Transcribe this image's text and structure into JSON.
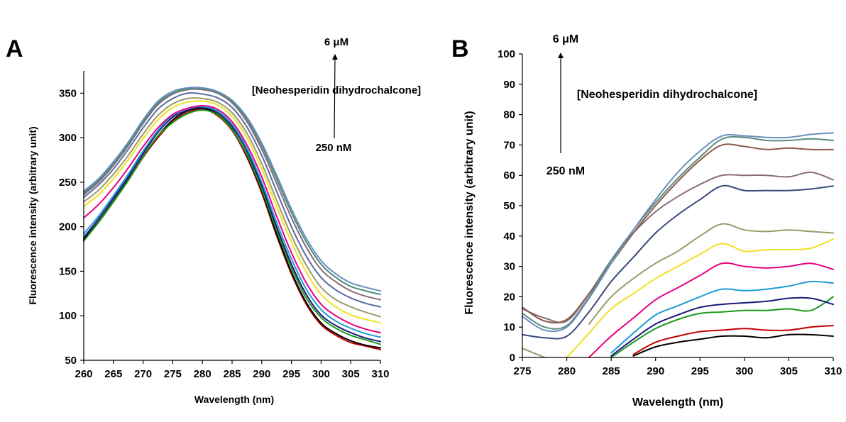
{
  "chart_data": [
    {
      "panel": "A",
      "type": "line",
      "xlabel": "Wavelength (nm)",
      "ylabel": "Fluorescence intensity (arbitrary unit)",
      "xlim": [
        260,
        310
      ],
      "ylim": [
        50,
        375
      ],
      "xticks": [
        260,
        265,
        270,
        275,
        280,
        285,
        290,
        295,
        300,
        305,
        310
      ],
      "yticks": [
        50,
        100,
        150,
        200,
        250,
        300,
        350
      ],
      "grid": false,
      "annotations": {
        "high": "6 μM",
        "low": "250 nM",
        "compound": "[Neohesperidin dihydrochalcone]"
      },
      "x": [
        260,
        262.5,
        265,
        267.5,
        270,
        272.5,
        275,
        277.5,
        280,
        282.5,
        285,
        287.5,
        290,
        292.5,
        295,
        297.5,
        300,
        302.5,
        305,
        307.5,
        310
      ],
      "series": [
        {
          "color": "#c00000",
          "values": [
            185,
            205,
            228,
            252,
            278,
            300,
            318,
            328,
            332,
            325,
            308,
            278,
            238,
            190,
            147,
            113,
            90,
            78,
            70,
            66,
            62
          ]
        },
        {
          "color": "#000000",
          "values": [
            186,
            206,
            229,
            253,
            279,
            302,
            320,
            330,
            333,
            327,
            310,
            280,
            240,
            192,
            149,
            115,
            92,
            80,
            72,
            67,
            64
          ]
        },
        {
          "color": "#1a9a1a",
          "values": [
            184,
            205,
            228,
            252,
            279,
            302,
            317,
            327,
            331,
            326,
            309,
            281,
            242,
            196,
            154,
            120,
            98,
            86,
            78,
            73,
            68
          ]
        },
        {
          "color": "#1a1a7a",
          "values": [
            188,
            209,
            232,
            256,
            282,
            306,
            323,
            331,
            334,
            329,
            313,
            285,
            246,
            200,
            158,
            124,
            101,
            89,
            81,
            75,
            71
          ]
        },
        {
          "color": "#1e9bd7",
          "values": [
            192,
            212,
            235,
            259,
            285,
            308,
            325,
            333,
            335,
            330,
            315,
            288,
            250,
            205,
            164,
            130,
            107,
            94,
            86,
            80,
            76
          ]
        },
        {
          "color": "#e6007e",
          "values": [
            210,
            225,
            244,
            266,
            290,
            311,
            326,
            333,
            336,
            332,
            318,
            292,
            256,
            212,
            171,
            137,
            113,
            100,
            91,
            85,
            81
          ]
        },
        {
          "color": "#f0e020",
          "values": [
            223,
            236,
            254,
            275,
            299,
            320,
            334,
            340,
            341,
            337,
            324,
            300,
            265,
            223,
            183,
            149,
            124,
            110,
            101,
            96,
            92
          ]
        },
        {
          "color": "#9a9a6a",
          "values": [
            228,
            241,
            259,
            280,
            304,
            325,
            338,
            344,
            344,
            340,
            328,
            305,
            271,
            230,
            190,
            157,
            132,
            118,
            110,
            104,
            99
          ]
        },
        {
          "color": "#5a6aa0",
          "values": [
            233,
            247,
            265,
            287,
            311,
            332,
            344,
            350,
            349,
            345,
            334,
            312,
            280,
            240,
            200,
            167,
            143,
            129,
            120,
            114,
            110
          ]
        },
        {
          "color": "#8a6a7a",
          "values": [
            236,
            250,
            269,
            291,
            316,
            337,
            349,
            354,
            354,
            350,
            339,
            318,
            287,
            249,
            210,
            177,
            152,
            138,
            128,
            122,
            118
          ]
        },
        {
          "color": "#4a8a7a",
          "values": [
            238,
            252,
            271,
            293,
            318,
            339,
            350,
            355,
            355,
            351,
            341,
            321,
            291,
            254,
            216,
            183,
            158,
            143,
            133,
            128,
            124
          ]
        },
        {
          "color": "#6a8fbf",
          "values": [
            240,
            254,
            273,
            295,
            320,
            341,
            352,
            356,
            356,
            352,
            342,
            323,
            294,
            258,
            220,
            187,
            162,
            147,
            137,
            132,
            128
          ]
        }
      ]
    },
    {
      "panel": "B",
      "type": "line",
      "xlabel": "Wavelength (nm)",
      "ylabel": "Fluorescence intensity (arbitrary unit)",
      "xlim": [
        275,
        310
      ],
      "ylim": [
        0,
        100
      ],
      "xticks": [
        275,
        280,
        285,
        290,
        295,
        300,
        305,
        310
      ],
      "yticks": [
        0,
        10,
        20,
        30,
        40,
        50,
        60,
        70,
        80,
        90,
        100
      ],
      "grid": false,
      "annotations": {
        "high": "6 μM",
        "low": "250 nM",
        "compound": "[Neohesperidin dihydrochalcone]"
      },
      "x": [
        275,
        277.5,
        280,
        282.5,
        285,
        287.5,
        290,
        292.5,
        295,
        297.5,
        300,
        302.5,
        305,
        307.5,
        310
      ],
      "series": [
        {
          "color": "#000000",
          "values": [
            null,
            null,
            null,
            null,
            null,
            0.5,
            3.5,
            5,
            6,
            7,
            7,
            6.5,
            7.5,
            7.5,
            7
          ]
        },
        {
          "color": "#c00000",
          "values": [
            null,
            null,
            null,
            null,
            null,
            1,
            5,
            7,
            8.5,
            9,
            9.5,
            9,
            9,
            10,
            10.5
          ]
        },
        {
          "color": "#1a9a1a",
          "values": [
            null,
            null,
            null,
            null,
            0,
            5,
            9.5,
            12.5,
            14.5,
            15,
            15.5,
            15.5,
            16,
            15.5,
            20
          ]
        },
        {
          "color": "#1a1a7a",
          "values": [
            null,
            null,
            null,
            null,
            0.5,
            6,
            11,
            14,
            16.5,
            17.5,
            18,
            18.5,
            19.5,
            19.5,
            17.5
          ]
        },
        {
          "color": "#1e9bd7",
          "values": [
            null,
            null,
            null,
            null,
            1.5,
            8,
            14,
            17,
            20,
            22.5,
            22,
            22.5,
            23.5,
            25,
            24.5
          ]
        },
        {
          "color": "#e6007e",
          "values": [
            null,
            null,
            null,
            0,
            7,
            13,
            19,
            23,
            27,
            31,
            30,
            29.5,
            30,
            31,
            29
          ]
        },
        {
          "color": "#f0e020",
          "values": [
            null,
            null,
            0,
            8,
            16,
            21,
            26,
            30,
            34,
            37.5,
            35,
            35.5,
            35.5,
            36,
            39
          ]
        },
        {
          "color": "#9a9a6a",
          "values": [
            3,
            0,
            null,
            11,
            20,
            26,
            31,
            35,
            40,
            44,
            42,
            41.5,
            42,
            41.5,
            41
          ]
        },
        {
          "color": "#3a4a7a",
          "values": [
            7.5,
            6.5,
            7,
            15,
            25,
            33,
            41,
            47,
            52,
            56.5,
            55,
            55,
            55,
            55.5,
            56.5
          ]
        },
        {
          "color": "#8a6a7a",
          "values": [
            16,
            13,
            12,
            21,
            32,
            41,
            48,
            53,
            57,
            60,
            60,
            60,
            59.5,
            61,
            58.5
          ]
        },
        {
          "color": "#8a5a4a",
          "values": [
            16.5,
            12,
            12.5,
            21,
            31,
            41,
            50,
            58,
            65,
            70,
            69.5,
            68.5,
            69,
            68.5,
            68.5
          ]
        },
        {
          "color": "#5a8a7a",
          "values": [
            14.5,
            10,
            10.5,
            20,
            32,
            42,
            51,
            59,
            66,
            72,
            72.5,
            71.5,
            71.5,
            72,
            71.5
          ]
        },
        {
          "color": "#6a8fbf",
          "values": [
            13.5,
            9,
            10,
            19.5,
            31,
            42,
            52,
            61,
            68,
            73,
            73,
            72.5,
            72.5,
            73.5,
            74
          ]
        }
      ]
    }
  ]
}
